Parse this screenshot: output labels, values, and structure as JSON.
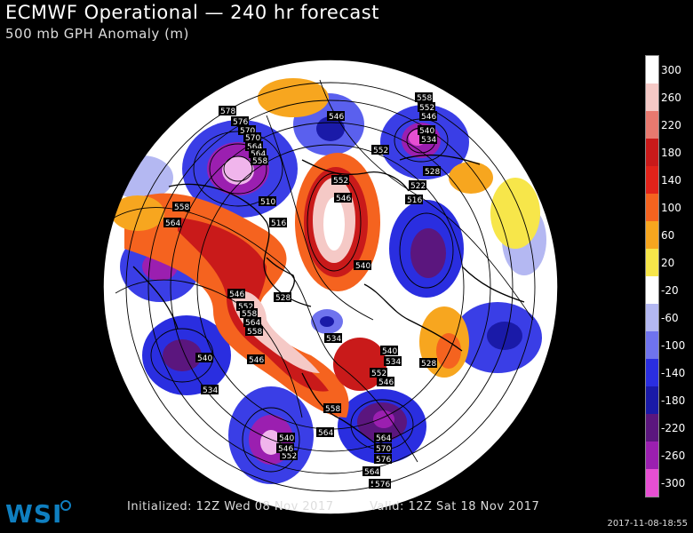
{
  "header": {
    "title": "ECMWF Operational — 240 hr forecast",
    "subtitle": "500 mb GPH Anomaly (m)"
  },
  "colorbar": {
    "labels": [
      "300",
      "260",
      "220",
      "180",
      "140",
      "100",
      "60",
      "20",
      "-20",
      "-60",
      "-100",
      "-140",
      "-180",
      "-220",
      "-260",
      "-300"
    ],
    "colors": [
      "#ffffff",
      "#f5c9c6",
      "#e8796f",
      "#c91a1a",
      "#e2231a",
      "#f5631f",
      "#f7a61f",
      "#f7e64a",
      "#ffffff",
      "#b4b8f2",
      "#6f73ee",
      "#2a2ee0",
      "#1a1aa8",
      "#5b167e",
      "#9b1fb0",
      "#e64fd2"
    ]
  },
  "contour_labels": [
    "578",
    "576",
    "570",
    "570",
    "564",
    "564",
    "558",
    "552",
    "546",
    "552",
    "546",
    "540",
    "534",
    "528",
    "522",
    "516",
    "510",
    "516",
    "558",
    "552",
    "546",
    "540",
    "534",
    "528",
    "546",
    "552",
    "558",
    "564",
    "558",
    "552",
    "546",
    "540",
    "534",
    "528",
    "546",
    "540",
    "534",
    "564",
    "558",
    "564",
    "570",
    "576",
    "552",
    "546",
    "540",
    "564",
    "570",
    "576",
    "558",
    "564"
  ],
  "footer": {
    "initialized": "Initialized: 12Z Wed 08 Nov 2017",
    "valid": "Valid: 12Z Sat 18 Nov 2017",
    "timestamp": "2017-11-08-18:55"
  },
  "logo": {
    "text": "WSI"
  }
}
